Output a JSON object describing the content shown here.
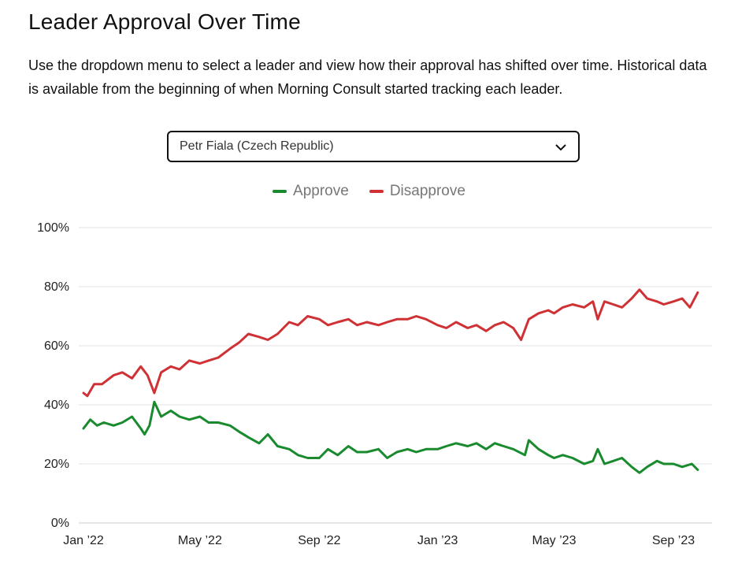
{
  "page": {
    "title": "Leader Approval Over Time",
    "description": "Use the dropdown menu to select a leader and view how their approval has shifted over time. Historical data is available from the beginning of when Morning Consult started tracking each leader."
  },
  "dropdown": {
    "selected": "Petr Fiala (Czech Republic)",
    "icon": "chevron-down-icon"
  },
  "colors": {
    "approve": "#1a8a2e",
    "disapprove": "#cf3135",
    "grid": "#e3e3e3"
  },
  "chart_data": {
    "type": "line",
    "title": "",
    "xlabel": "",
    "ylabel": "",
    "legend_position": "top-center",
    "grid": true,
    "ylim": [
      0,
      100
    ],
    "y_ticks": [
      {
        "value": 0,
        "label": "0%"
      },
      {
        "value": 20,
        "label": "20%"
      },
      {
        "value": 40,
        "label": "40%"
      },
      {
        "value": 60,
        "label": "60%"
      },
      {
        "value": 80,
        "label": "80%"
      },
      {
        "value": 100,
        "label": "100%"
      }
    ],
    "x_ticks": [
      {
        "date": "2022-01-01",
        "label": "Jan ’22"
      },
      {
        "date": "2022-05-01",
        "label": "May ’22"
      },
      {
        "date": "2022-09-01",
        "label": "Sep ’22"
      },
      {
        "date": "2023-01-01",
        "label": "Jan ’23"
      },
      {
        "date": "2023-05-01",
        "label": "May ’23"
      },
      {
        "date": "2023-09-01",
        "label": "Sep ’23"
      }
    ],
    "xlim": [
      "2022-01-01",
      "2023-09-30"
    ],
    "series": [
      {
        "name": "Approve",
        "color": "#1a8a2e",
        "points": [
          [
            "2022-01-01",
            32
          ],
          [
            "2022-01-08",
            35
          ],
          [
            "2022-01-15",
            33
          ],
          [
            "2022-01-22",
            34
          ],
          [
            "2022-02-01",
            33
          ],
          [
            "2022-02-10",
            34
          ],
          [
            "2022-02-20",
            36
          ],
          [
            "2022-03-01",
            32
          ],
          [
            "2022-03-05",
            30
          ],
          [
            "2022-03-10",
            33
          ],
          [
            "2022-03-15",
            41
          ],
          [
            "2022-03-22",
            36
          ],
          [
            "2022-04-01",
            38
          ],
          [
            "2022-04-10",
            36
          ],
          [
            "2022-04-20",
            35
          ],
          [
            "2022-05-01",
            36
          ],
          [
            "2022-05-10",
            34
          ],
          [
            "2022-05-20",
            34
          ],
          [
            "2022-06-01",
            33
          ],
          [
            "2022-06-10",
            31
          ],
          [
            "2022-06-20",
            29
          ],
          [
            "2022-07-01",
            27
          ],
          [
            "2022-07-10",
            30
          ],
          [
            "2022-07-20",
            26
          ],
          [
            "2022-08-01",
            25
          ],
          [
            "2022-08-10",
            23
          ],
          [
            "2022-08-20",
            22
          ],
          [
            "2022-09-01",
            22
          ],
          [
            "2022-09-10",
            25
          ],
          [
            "2022-09-20",
            23
          ],
          [
            "2022-10-01",
            26
          ],
          [
            "2022-10-10",
            24
          ],
          [
            "2022-10-20",
            24
          ],
          [
            "2022-11-01",
            25
          ],
          [
            "2022-11-10",
            22
          ],
          [
            "2022-11-20",
            24
          ],
          [
            "2022-12-01",
            25
          ],
          [
            "2022-12-10",
            24
          ],
          [
            "2022-12-20",
            25
          ],
          [
            "2023-01-01",
            25
          ],
          [
            "2023-01-10",
            26
          ],
          [
            "2023-01-20",
            27
          ],
          [
            "2023-02-01",
            26
          ],
          [
            "2023-02-10",
            27
          ],
          [
            "2023-02-20",
            25
          ],
          [
            "2023-03-01",
            27
          ],
          [
            "2023-03-10",
            26
          ],
          [
            "2023-03-20",
            25
          ],
          [
            "2023-04-01",
            23
          ],
          [
            "2023-04-05",
            28
          ],
          [
            "2023-04-15",
            25
          ],
          [
            "2023-04-25",
            23
          ],
          [
            "2023-05-01",
            22
          ],
          [
            "2023-05-10",
            23
          ],
          [
            "2023-05-20",
            22
          ],
          [
            "2023-06-01",
            20
          ],
          [
            "2023-06-10",
            21
          ],
          [
            "2023-06-15",
            25
          ],
          [
            "2023-06-22",
            20
          ],
          [
            "2023-07-01",
            21
          ],
          [
            "2023-07-10",
            22
          ],
          [
            "2023-07-20",
            19
          ],
          [
            "2023-07-28",
            17
          ],
          [
            "2023-08-05",
            19
          ],
          [
            "2023-08-15",
            21
          ],
          [
            "2023-08-22",
            20
          ],
          [
            "2023-09-01",
            20
          ],
          [
            "2023-09-10",
            19
          ],
          [
            "2023-09-20",
            20
          ],
          [
            "2023-09-26",
            18
          ]
        ]
      },
      {
        "name": "Disapprove",
        "color": "#cf3135",
        "points": [
          [
            "2022-01-01",
            44
          ],
          [
            "2022-01-05",
            43
          ],
          [
            "2022-01-12",
            47
          ],
          [
            "2022-01-20",
            47
          ],
          [
            "2022-02-01",
            50
          ],
          [
            "2022-02-10",
            51
          ],
          [
            "2022-02-20",
            49
          ],
          [
            "2022-03-01",
            53
          ],
          [
            "2022-03-08",
            50
          ],
          [
            "2022-03-15",
            44
          ],
          [
            "2022-03-22",
            51
          ],
          [
            "2022-04-01",
            53
          ],
          [
            "2022-04-10",
            52
          ],
          [
            "2022-04-20",
            55
          ],
          [
            "2022-05-01",
            54
          ],
          [
            "2022-05-10",
            55
          ],
          [
            "2022-05-20",
            56
          ],
          [
            "2022-06-01",
            59
          ],
          [
            "2022-06-10",
            61
          ],
          [
            "2022-06-20",
            64
          ],
          [
            "2022-07-01",
            63
          ],
          [
            "2022-07-10",
            62
          ],
          [
            "2022-07-20",
            64
          ],
          [
            "2022-08-01",
            68
          ],
          [
            "2022-08-10",
            67
          ],
          [
            "2022-08-20",
            70
          ],
          [
            "2022-09-01",
            69
          ],
          [
            "2022-09-10",
            67
          ],
          [
            "2022-09-20",
            68
          ],
          [
            "2022-10-01",
            69
          ],
          [
            "2022-10-10",
            67
          ],
          [
            "2022-10-20",
            68
          ],
          [
            "2022-11-01",
            67
          ],
          [
            "2022-11-10",
            68
          ],
          [
            "2022-11-20",
            69
          ],
          [
            "2022-12-01",
            69
          ],
          [
            "2022-12-10",
            70
          ],
          [
            "2022-12-20",
            69
          ],
          [
            "2023-01-01",
            67
          ],
          [
            "2023-01-10",
            66
          ],
          [
            "2023-01-20",
            68
          ],
          [
            "2023-02-01",
            66
          ],
          [
            "2023-02-10",
            67
          ],
          [
            "2023-02-20",
            65
          ],
          [
            "2023-03-01",
            67
          ],
          [
            "2023-03-10",
            68
          ],
          [
            "2023-03-20",
            66
          ],
          [
            "2023-03-28",
            62
          ],
          [
            "2023-04-05",
            69
          ],
          [
            "2023-04-15",
            71
          ],
          [
            "2023-04-25",
            72
          ],
          [
            "2023-05-01",
            71
          ],
          [
            "2023-05-10",
            73
          ],
          [
            "2023-05-20",
            74
          ],
          [
            "2023-06-01",
            73
          ],
          [
            "2023-06-10",
            75
          ],
          [
            "2023-06-15",
            69
          ],
          [
            "2023-06-22",
            75
          ],
          [
            "2023-07-01",
            74
          ],
          [
            "2023-07-10",
            73
          ],
          [
            "2023-07-20",
            76
          ],
          [
            "2023-07-28",
            79
          ],
          [
            "2023-08-05",
            76
          ],
          [
            "2023-08-15",
            75
          ],
          [
            "2023-08-22",
            74
          ],
          [
            "2023-09-01",
            75
          ],
          [
            "2023-09-10",
            76
          ],
          [
            "2023-09-18",
            73
          ],
          [
            "2023-09-26",
            78
          ]
        ]
      }
    ]
  }
}
